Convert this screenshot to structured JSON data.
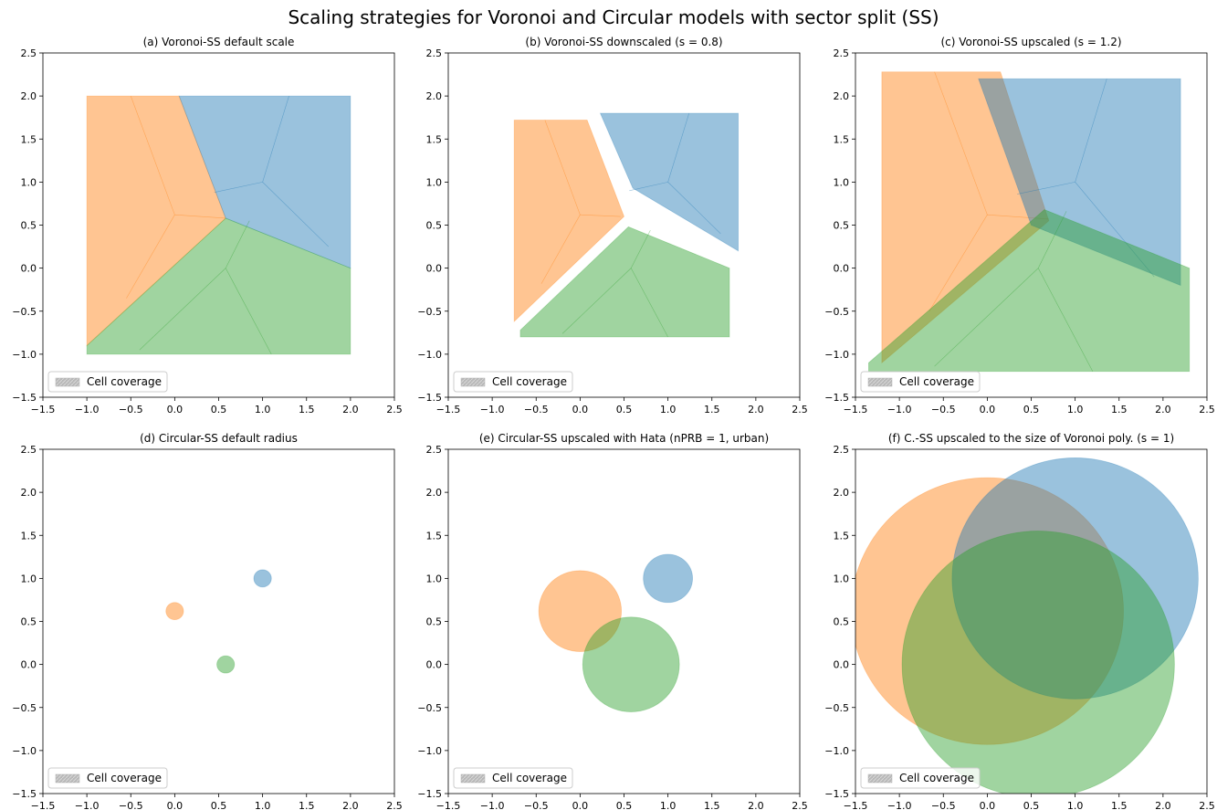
{
  "title": "Scaling strategies for Voronoi and Circular models with sector split (SS)",
  "chart_data": [
    {
      "type": "polygon",
      "title": "(a) Voronoi-SS default scale",
      "alpha": 0.45,
      "xlim": [
        -1.5,
        2.5
      ],
      "ylim": [
        -1.5,
        2.5
      ],
      "xticks": [
        {
          "value": -1.5,
          "label": "−1.5"
        },
        {
          "value": -1.0,
          "label": "−1.0"
        },
        {
          "value": -0.5,
          "label": "−0.5"
        },
        {
          "value": 0.0,
          "label": "0.0"
        },
        0.5,
        {
          "value": 1.0,
          "label": "1.0"
        },
        1.5,
        {
          "value": 2.0,
          "label": "2.0"
        },
        2.5
      ],
      "yticks": [
        {
          "value": -1.5,
          "label": "−1.5"
        },
        {
          "value": -1.0,
          "label": "−1.0"
        },
        {
          "value": -0.5,
          "label": "−0.5"
        },
        {
          "value": 0.0,
          "label": "0.0"
        },
        0.5,
        {
          "value": 1.0,
          "label": "1.0"
        },
        1.5,
        {
          "value": 2.0,
          "label": "2.0"
        },
        2.5
      ],
      "legend": {
        "label": "Cell coverage",
        "loc": "lower left",
        "color": "#b0b0b0"
      },
      "series": [
        {
          "color": "#ff7f0e",
          "x": [
            -1,
            0.05,
            0.58,
            -1
          ],
          "y": [
            2,
            2,
            0.58,
            -0.9
          ],
          "site": [
            0,
            0.62
          ],
          "split_x": [
            -0.5,
            0.58,
            -0.55
          ],
          "split_y": [
            2,
            0.58,
            -0.35
          ]
        },
        {
          "color": "#1f77b4",
          "x": [
            0.05,
            2,
            2,
            0.58
          ],
          "y": [
            2,
            2,
            0,
            0.58
          ],
          "site": [
            1,
            1
          ],
          "split_x": [
            1.3,
            0.45,
            1.75
          ],
          "split_y": [
            2,
            0.88,
            0.25
          ]
        },
        {
          "color": "#2ca02c",
          "x": [
            -1,
            0.58,
            2,
            2,
            -1
          ],
          "y": [
            -0.9,
            0.58,
            0,
            -1,
            -1
          ],
          "site": [
            0.58,
            0
          ],
          "split_x": [
            0.85,
            1.1,
            -0.4
          ],
          "split_y": [
            0.55,
            -1,
            -0.95
          ]
        }
      ]
    },
    {
      "type": "polygon",
      "title": "(b) Voronoi-SS downscaled (s = 0.8)",
      "alpha": 0.45,
      "xlim": [
        -1.5,
        2.5
      ],
      "ylim": [
        -1.5,
        2.5
      ],
      "xticks": [
        {
          "value": -1.5,
          "label": "−1.5"
        },
        {
          "value": -1.0,
          "label": "−1.0"
        },
        {
          "value": -0.5,
          "label": "−0.5"
        },
        {
          "value": 0.0,
          "label": "0.0"
        },
        0.5,
        {
          "value": 1.0,
          "label": "1.0"
        },
        1.5,
        {
          "value": 2.0,
          "label": "2.0"
        },
        2.5
      ],
      "yticks": [
        {
          "value": -1.5,
          "label": "−1.5"
        },
        {
          "value": -1.0,
          "label": "−1.0"
        },
        {
          "value": -0.5,
          "label": "−0.5"
        },
        {
          "value": 0.0,
          "label": "0.0"
        },
        0.5,
        {
          "value": 1.0,
          "label": "1.0"
        },
        1.5,
        {
          "value": 2.0,
          "label": "2.0"
        },
        2.5
      ],
      "legend": {
        "label": "Cell coverage",
        "loc": "lower left",
        "color": "#b0b0b0"
      },
      "series": [
        {
          "color": "#ff7f0e",
          "x": [
            -0.75,
            0.08,
            0.5,
            -0.75
          ],
          "y": [
            1.72,
            1.72,
            0.6,
            -0.62
          ],
          "site": [
            0,
            0.62
          ],
          "split_x": [
            -0.4,
            0.46,
            -0.44
          ],
          "split_y": [
            1.72,
            0.6,
            -0.18
          ]
        },
        {
          "color": "#1f77b4",
          "x": [
            0.23,
            1.8,
            1.8,
            0.6
          ],
          "y": [
            1.8,
            1.8,
            0.2,
            0.93
          ],
          "site": [
            1,
            1
          ],
          "split_x": [
            1.24,
            0.56,
            1.6
          ],
          "split_y": [
            1.8,
            0.9,
            0.4
          ]
        },
        {
          "color": "#2ca02c",
          "x": [
            -0.68,
            0.55,
            1.7,
            1.7,
            -0.68
          ],
          "y": [
            -0.72,
            0.48,
            0,
            -0.8,
            -0.8
          ],
          "site": [
            0.58,
            0
          ],
          "split_x": [
            0.8,
            1,
            -0.2
          ],
          "split_y": [
            0.44,
            -0.8,
            -0.76
          ]
        }
      ]
    },
    {
      "type": "polygon",
      "title": "(c) Voronoi-SS upscaled (s = 1.2)",
      "alpha": 0.45,
      "xlim": [
        -1.5,
        2.5
      ],
      "ylim": [
        -1.5,
        2.5
      ],
      "xticks": [
        {
          "value": -1.5,
          "label": "−1.5"
        },
        {
          "value": -1.0,
          "label": "−1.0"
        },
        {
          "value": -0.5,
          "label": "−0.5"
        },
        {
          "value": 0.0,
          "label": "0.0"
        },
        0.5,
        {
          "value": 1.0,
          "label": "1.0"
        },
        1.5,
        {
          "value": 2.0,
          "label": "2.0"
        },
        2.5
      ],
      "yticks": [
        {
          "value": -1.5,
          "label": "−1.5"
        },
        {
          "value": -1.0,
          "label": "−1.0"
        },
        {
          "value": -0.5,
          "label": "−0.5"
        },
        {
          "value": 0.0,
          "label": "0.0"
        },
        0.5,
        {
          "value": 1.0,
          "label": "1.0"
        },
        1.5,
        {
          "value": 2.0,
          "label": "2.0"
        },
        2.5
      ],
      "legend": {
        "label": "Cell coverage",
        "loc": "lower left",
        "color": "#b0b0b0"
      },
      "series": [
        {
          "color": "#ff7f0e",
          "x": [
            -1.2,
            0.15,
            0.7,
            -1.2
          ],
          "y": [
            2.28,
            2.28,
            0.55,
            -1.1
          ],
          "site": [
            0,
            0.62
          ],
          "split_x": [
            -0.6,
            0.7,
            -0.66
          ],
          "split_y": [
            2.28,
            0.57,
            -0.5
          ]
        },
        {
          "color": "#1f77b4",
          "x": [
            -0.1,
            2.2,
            2.2,
            0.5
          ],
          "y": [
            2.2,
            2.2,
            -0.2,
            0.5
          ],
          "site": [
            1,
            1
          ],
          "split_x": [
            1.36,
            0.34,
            1.9
          ],
          "split_y": [
            2.2,
            0.86,
            -0.1
          ]
        },
        {
          "color": "#2ca02c",
          "x": [
            -1.35,
            0.65,
            2.3,
            2.3,
            -1.35
          ],
          "y": [
            -1.1,
            0.68,
            0,
            -1.2,
            -1.2
          ],
          "site": [
            0.58,
            0
          ],
          "split_x": [
            0.9,
            1.2,
            -0.6
          ],
          "split_y": [
            0.66,
            -1.2,
            -1.14
          ]
        }
      ]
    },
    {
      "type": "circle",
      "title": "(d) Circular-SS default radius",
      "alpha": 0.45,
      "xlim": [
        -1.5,
        2.5
      ],
      "ylim": [
        -1.5,
        2.5
      ],
      "xticks": [
        {
          "value": -1.5,
          "label": "−1.5"
        },
        {
          "value": -1.0,
          "label": "−1.0"
        },
        {
          "value": -0.5,
          "label": "−0.5"
        },
        {
          "value": 0.0,
          "label": "0.0"
        },
        0.5,
        {
          "value": 1.0,
          "label": "1.0"
        },
        1.5,
        {
          "value": 2.0,
          "label": "2.0"
        },
        2.5
      ],
      "yticks": [
        {
          "value": -1.5,
          "label": "−1.5"
        },
        {
          "value": -1.0,
          "label": "−1.0"
        },
        {
          "value": -0.5,
          "label": "−0.5"
        },
        {
          "value": 0.0,
          "label": "0.0"
        },
        0.5,
        {
          "value": 1.0,
          "label": "1.0"
        },
        1.5,
        {
          "value": 2.0,
          "label": "2.0"
        },
        2.5
      ],
      "legend": {
        "label": "Cell coverage",
        "loc": "lower left",
        "color": "#b0b0b0"
      },
      "series": [
        {
          "color": "#ff7f0e",
          "center": [
            0,
            0.62
          ],
          "radius": 0.1
        },
        {
          "color": "#1f77b4",
          "center": [
            1,
            1
          ],
          "radius": 0.1
        },
        {
          "color": "#2ca02c",
          "center": [
            0.58,
            0
          ],
          "radius": 0.1
        }
      ]
    },
    {
      "type": "circle",
      "title": "(e) Circular-SS upscaled with Hata (nPRB = 1, urban)",
      "alpha": 0.45,
      "xlim": [
        -1.5,
        2.5
      ],
      "ylim": [
        -1.5,
        2.5
      ],
      "xticks": [
        {
          "value": -1.5,
          "label": "−1.5"
        },
        {
          "value": -1.0,
          "label": "−1.0"
        },
        {
          "value": -0.5,
          "label": "−0.5"
        },
        {
          "value": 0.0,
          "label": "0.0"
        },
        0.5,
        {
          "value": 1.0,
          "label": "1.0"
        },
        1.5,
        {
          "value": 2.0,
          "label": "2.0"
        },
        2.5
      ],
      "yticks": [
        {
          "value": -1.5,
          "label": "−1.5"
        },
        {
          "value": -1.0,
          "label": "−1.0"
        },
        {
          "value": -0.5,
          "label": "−0.5"
        },
        {
          "value": 0.0,
          "label": "0.0"
        },
        0.5,
        {
          "value": 1.0,
          "label": "1.0"
        },
        1.5,
        {
          "value": 2.0,
          "label": "2.0"
        },
        2.5
      ],
      "legend": {
        "label": "Cell coverage",
        "loc": "lower left",
        "color": "#b0b0b0"
      },
      "series": [
        {
          "color": "#ff7f0e",
          "center": [
            0,
            0.62
          ],
          "radius": 0.47
        },
        {
          "color": "#1f77b4",
          "center": [
            1,
            1
          ],
          "radius": 0.28
        },
        {
          "color": "#2ca02c",
          "center": [
            0.58,
            0
          ],
          "radius": 0.55
        }
      ]
    },
    {
      "type": "circle",
      "title": "(f) C.-SS upscaled to the size of Voronoi poly. (s = 1)",
      "alpha": 0.45,
      "xlim": [
        -1.5,
        2.5
      ],
      "ylim": [
        -1.5,
        2.5
      ],
      "xticks": [
        {
          "value": -1.5,
          "label": "−1.5"
        },
        {
          "value": -1.0,
          "label": "−1.0"
        },
        {
          "value": -0.5,
          "label": "−0.5"
        },
        {
          "value": 0.0,
          "label": "0.0"
        },
        0.5,
        {
          "value": 1.0,
          "label": "1.0"
        },
        1.5,
        {
          "value": 2.0,
          "label": "2.0"
        },
        2.5
      ],
      "yticks": [
        {
          "value": -1.5,
          "label": "−1.5"
        },
        {
          "value": -1.0,
          "label": "−1.0"
        },
        {
          "value": -0.5,
          "label": "−0.5"
        },
        {
          "value": 0.0,
          "label": "0.0"
        },
        0.5,
        {
          "value": 1.0,
          "label": "1.0"
        },
        1.5,
        {
          "value": 2.0,
          "label": "2.0"
        },
        2.5
      ],
      "legend": {
        "label": "Cell coverage",
        "loc": "lower left",
        "color": "#b0b0b0"
      },
      "series": [
        {
          "color": "#ff7f0e",
          "center": [
            0,
            0.62
          ],
          "radius": 1.55
        },
        {
          "color": "#1f77b4",
          "center": [
            1,
            1
          ],
          "radius": 1.4
        },
        {
          "color": "#2ca02c",
          "center": [
            0.58,
            0
          ],
          "radius": 1.55
        }
      ]
    }
  ]
}
